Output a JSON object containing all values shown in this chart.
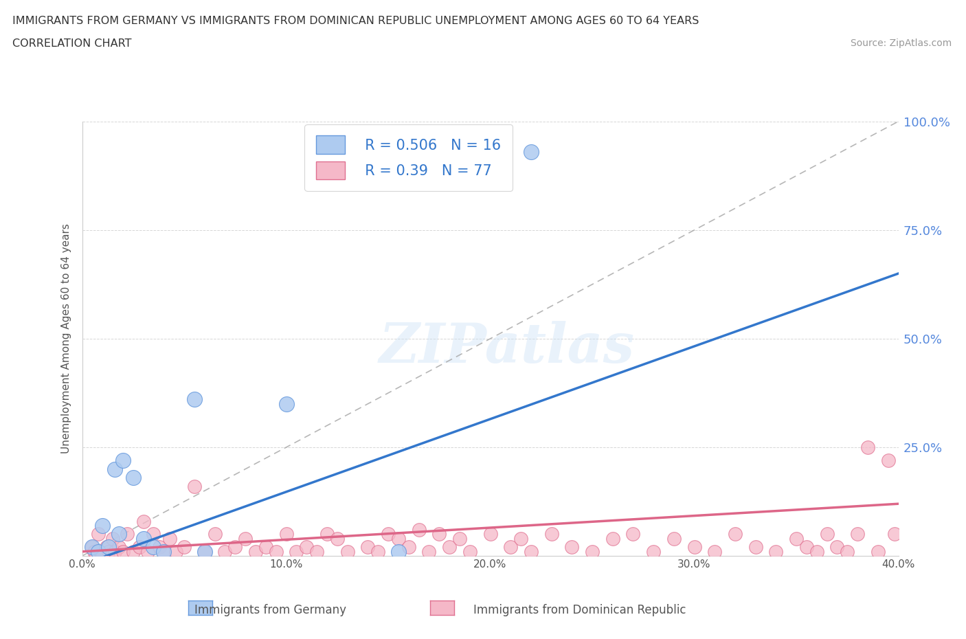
{
  "title_line1": "IMMIGRANTS FROM GERMANY VS IMMIGRANTS FROM DOMINICAN REPUBLIC UNEMPLOYMENT AMONG AGES 60 TO 64 YEARS",
  "title_line2": "CORRELATION CHART",
  "source": "Source: ZipAtlas.com",
  "ylabel": "Unemployment Among Ages 60 to 64 years",
  "xlabel_germany": "Immigrants from Germany",
  "xlabel_dr": "Immigrants from Dominican Republic",
  "xlim": [
    0.0,
    0.4
  ],
  "ylim": [
    0.0,
    1.0
  ],
  "xticks": [
    0.0,
    0.1,
    0.2,
    0.3,
    0.4
  ],
  "xticklabels": [
    "0.0%",
    "10.0%",
    "20.0%",
    "30.0%",
    "40.0%"
  ],
  "yticks_right": [
    0.25,
    0.5,
    0.75,
    1.0
  ],
  "yticks_right_labels": [
    "25.0%",
    "50.0%",
    "75.0%",
    "100.0%"
  ],
  "germany_color": "#aecbf0",
  "germany_edge": "#6699dd",
  "dr_color": "#f5b8c8",
  "dr_edge": "#e07090",
  "germany_R": 0.506,
  "germany_N": 16,
  "dr_R": 0.39,
  "dr_N": 77,
  "germany_line_color": "#3377cc",
  "dr_line_color": "#dd6688",
  "ref_line_color": "#aaaaaa",
  "watermark": "ZIPatlas",
  "legend_text_color": "#3377cc",
  "germany_line_x0": 0.0,
  "germany_line_y0": -0.02,
  "germany_line_x1": 0.4,
  "germany_line_y1": 0.65,
  "dr_line_x0": 0.0,
  "dr_line_y0": 0.01,
  "dr_line_x1": 0.4,
  "dr_line_y1": 0.12,
  "germany_x": [
    0.005,
    0.008,
    0.01,
    0.013,
    0.016,
    0.018,
    0.02,
    0.025,
    0.03,
    0.035,
    0.04,
    0.055,
    0.1,
    0.22,
    0.155,
    0.06
  ],
  "germany_y": [
    0.02,
    0.01,
    0.07,
    0.02,
    0.2,
    0.05,
    0.22,
    0.18,
    0.04,
    0.02,
    0.01,
    0.36,
    0.35,
    0.93,
    0.01,
    0.01
  ],
  "dr_x": [
    0.005,
    0.006,
    0.007,
    0.008,
    0.009,
    0.01,
    0.012,
    0.013,
    0.015,
    0.016,
    0.018,
    0.02,
    0.022,
    0.025,
    0.028,
    0.03,
    0.032,
    0.035,
    0.038,
    0.04,
    0.043,
    0.046,
    0.05,
    0.055,
    0.06,
    0.065,
    0.07,
    0.075,
    0.08,
    0.085,
    0.09,
    0.095,
    0.1,
    0.105,
    0.11,
    0.115,
    0.12,
    0.125,
    0.13,
    0.14,
    0.145,
    0.15,
    0.155,
    0.16,
    0.165,
    0.17,
    0.175,
    0.18,
    0.185,
    0.19,
    0.2,
    0.21,
    0.215,
    0.22,
    0.23,
    0.24,
    0.25,
    0.26,
    0.27,
    0.28,
    0.29,
    0.3,
    0.31,
    0.32,
    0.33,
    0.34,
    0.35,
    0.355,
    0.36,
    0.365,
    0.37,
    0.375,
    0.38,
    0.385,
    0.39,
    0.395,
    0.398
  ],
  "dr_y": [
    0.02,
    0.01,
    0.0,
    0.05,
    0.01,
    0.0,
    0.02,
    0.01,
    0.04,
    0.01,
    0.02,
    0.01,
    0.05,
    0.01,
    0.02,
    0.08,
    0.01,
    0.05,
    0.02,
    0.01,
    0.04,
    0.01,
    0.02,
    0.16,
    0.01,
    0.05,
    0.01,
    0.02,
    0.04,
    0.01,
    0.02,
    0.01,
    0.05,
    0.01,
    0.02,
    0.01,
    0.05,
    0.04,
    0.01,
    0.02,
    0.01,
    0.05,
    0.04,
    0.02,
    0.06,
    0.01,
    0.05,
    0.02,
    0.04,
    0.01,
    0.05,
    0.02,
    0.04,
    0.01,
    0.05,
    0.02,
    0.01,
    0.04,
    0.05,
    0.01,
    0.04,
    0.02,
    0.01,
    0.05,
    0.02,
    0.01,
    0.04,
    0.02,
    0.01,
    0.05,
    0.02,
    0.01,
    0.05,
    0.25,
    0.01,
    0.22,
    0.05
  ]
}
